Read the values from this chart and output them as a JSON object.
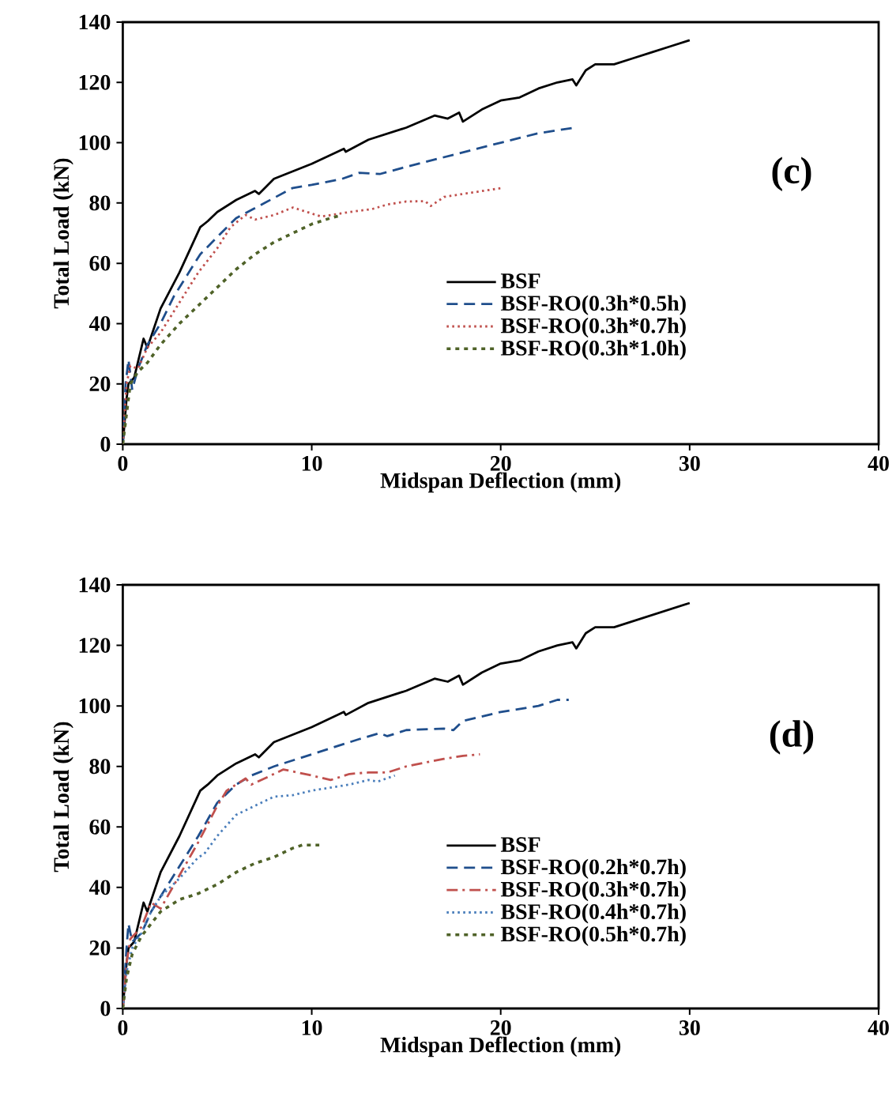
{
  "chart_data": [
    {
      "type": "line",
      "xlabel": "Midspan Deflection (mm)",
      "ylabel": "Total Load (kN)",
      "annotations": [
        "(c)"
      ],
      "xlim": [
        0,
        40
      ],
      "ylim": [
        0,
        140
      ],
      "xticks": [
        0,
        10,
        20,
        30,
        40
      ],
      "yticks": [
        0,
        20,
        40,
        60,
        80,
        100,
        120,
        140
      ],
      "grid": false,
      "legend": "bottom right",
      "marker": "none",
      "series": [
        {
          "name": "BSF",
          "color": "#000000",
          "line_style": "solid",
          "x": [
            0,
            0.2,
            0.3,
            0.6,
            1.1,
            1.3,
            2,
            3,
            4.1,
            4.5,
            5,
            6,
            7,
            7.2,
            8,
            10,
            11.7,
            11.8,
            13,
            15,
            16.5,
            17.2,
            17.8,
            18,
            19,
            20,
            21,
            22,
            23,
            23.8,
            24,
            24.5,
            25,
            26,
            27,
            28,
            29,
            30
          ],
          "values": [
            0,
            15,
            20,
            22,
            35,
            32,
            45,
            57,
            72,
            74,
            77,
            81,
            84,
            83,
            88,
            93,
            98,
            97,
            101,
            105,
            109,
            108,
            110,
            107,
            111,
            114,
            115,
            118,
            120,
            121,
            119,
            124,
            126,
            126,
            128,
            130,
            132,
            134
          ]
        },
        {
          "name": "BSF-RO(0.3h*0.5h)",
          "color": "#1f4e8c",
          "line_style": "dashed",
          "x": [
            0,
            0.15,
            0.3,
            0.5,
            0.8,
            1.3,
            2,
            2.7,
            3.5,
            4.1,
            5.2,
            6,
            6.9,
            9,
            10,
            11.6,
            12.5,
            13.6,
            15,
            17.5,
            20,
            21.9,
            23.9
          ],
          "values": [
            0,
            20,
            28,
            18,
            25,
            33,
            40,
            49,
            57,
            63,
            70,
            75,
            78,
            85,
            86,
            88,
            90,
            89.6,
            92,
            96,
            100,
            103,
            105
          ]
        },
        {
          "name": "BSF-RO(0.3h*0.7h)",
          "color": "#c0504d",
          "line_style": "dotted",
          "x": [
            0,
            0.2,
            0.4,
            0.8,
            1.3,
            2,
            3,
            4,
            5,
            5.7,
            6.5,
            7,
            8,
            9,
            10,
            10.5,
            12,
            13.2,
            14,
            15,
            16,
            16.3,
            17,
            18,
            20.1
          ],
          "values": [
            0,
            20,
            26,
            25,
            32,
            37,
            47,
            57,
            65,
            72,
            76,
            74.5,
            76,
            78.5,
            76.5,
            75.5,
            77,
            78,
            79.5,
            80.5,
            80.6,
            79,
            82,
            83,
            85
          ]
        },
        {
          "name": "BSF-RO(0.3h*1.0h)",
          "color": "#4f6228",
          "line_style": "shortdash",
          "x": [
            0,
            0.2,
            0.4,
            0.8,
            1.3,
            2,
            3,
            4,
            5,
            6,
            7,
            8,
            9,
            10,
            11,
            11.6
          ],
          "values": [
            0,
            10,
            20,
            24,
            27,
            33,
            40,
            46,
            52,
            58,
            63,
            67,
            70,
            73,
            75,
            76
          ]
        }
      ]
    },
    {
      "type": "line",
      "xlabel": "Midspan Deflection (mm)",
      "ylabel": "Total Load (kN)",
      "annotations": [
        "(d)"
      ],
      "xlim": [
        0,
        40
      ],
      "ylim": [
        0,
        140
      ],
      "xticks": [
        0,
        10,
        20,
        30,
        40
      ],
      "yticks": [
        0,
        20,
        40,
        60,
        80,
        100,
        120,
        140
      ],
      "grid": false,
      "legend": "bottom right",
      "marker": "none",
      "series": [
        {
          "name": "BSF",
          "color": "#000000",
          "line_style": "solid",
          "x": [
            0,
            0.2,
            0.3,
            0.6,
            1.1,
            1.3,
            2,
            3,
            4.1,
            4.5,
            5,
            6,
            7,
            7.2,
            8,
            10,
            11.7,
            11.8,
            13,
            15,
            16.5,
            17.2,
            17.8,
            18,
            19,
            20,
            21,
            22,
            23,
            23.8,
            24,
            24.5,
            25,
            26,
            27,
            28,
            29,
            30
          ],
          "values": [
            0,
            15,
            20,
            22,
            35,
            32,
            45,
            57,
            72,
            74,
            77,
            81,
            84,
            83,
            88,
            93,
            98,
            97,
            101,
            105,
            109,
            108,
            110,
            107,
            111,
            114,
            115,
            118,
            120,
            121,
            119,
            124,
            126,
            126,
            128,
            130,
            132,
            134
          ]
        },
        {
          "name": "BSF-RO(0.2h*0.7h)",
          "color": "#1f4e8c",
          "line_style": "dashed",
          "x": [
            0,
            0.2,
            0.3,
            0.5,
            1,
            1.5,
            2,
            3,
            4,
            5,
            6,
            6.8,
            8,
            10,
            11.5,
            12.5,
            13.6,
            14,
            15,
            17,
            17.5,
            18,
            20,
            22,
            23,
            23.6
          ],
          "values": [
            0,
            20,
            28,
            22,
            25,
            32,
            37,
            47,
            57,
            68,
            74,
            77,
            80,
            84,
            87,
            89,
            91,
            90,
            92,
            92.5,
            92,
            95,
            98,
            100,
            102,
            102
          ]
        },
        {
          "name": "BSF-RO(0.3h*0.7h)",
          "color": "#c0504d",
          "line_style": "dashdot",
          "x": [
            0,
            0.2,
            0.4,
            1,
            1.5,
            2,
            3,
            4,
            5,
            5.5,
            6.5,
            6.8,
            7.5,
            8.5,
            10,
            11,
            12,
            13,
            14,
            15,
            17,
            18,
            18.9
          ],
          "values": [
            0,
            15,
            23,
            27,
            35,
            33,
            44,
            55,
            67,
            72,
            76,
            74,
            76,
            79,
            77,
            75.5,
            77.5,
            78,
            78,
            80,
            82.5,
            83.5,
            84
          ]
        },
        {
          "name": "BSF-RO(0.4h*0.7h)",
          "color": "#4a7ebb",
          "line_style": "dotted",
          "x": [
            0,
            0.2,
            0.5,
            1,
            1.5,
            2,
            3,
            4,
            4.3,
            5,
            6,
            7,
            8,
            9,
            10,
            12,
            13,
            13.5,
            14.4
          ],
          "values": [
            0,
            12,
            20,
            25,
            32,
            37,
            43,
            50,
            51,
            57,
            64,
            67,
            70,
            70.5,
            72,
            74,
            75.5,
            75,
            77
          ]
        },
        {
          "name": "BSF-RO(0.5h*0.7h)",
          "color": "#4f6228",
          "line_style": "shortdash",
          "x": [
            0,
            0.2,
            0.5,
            1,
            1.5,
            2,
            3,
            4,
            5,
            6,
            7,
            8,
            9,
            9.5,
            10.4
          ],
          "values": [
            0,
            10,
            18,
            24,
            28,
            32,
            36,
            38,
            41,
            45,
            48,
            50,
            53,
            54,
            54
          ]
        }
      ]
    }
  ]
}
